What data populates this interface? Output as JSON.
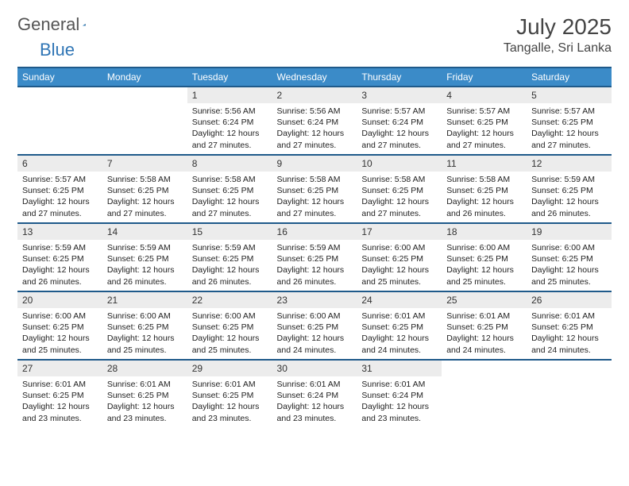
{
  "brand": {
    "part1": "General",
    "part2": "Blue"
  },
  "title": "July 2025",
  "location": "Tangalle, Sri Lanka",
  "colors": {
    "header_bg": "#3b8bc8",
    "header_border": "#1f5a8a",
    "daynum_bg": "#ececec",
    "brand_gray": "#545454",
    "brand_blue": "#2f75b5"
  },
  "weekdays": [
    "Sunday",
    "Monday",
    "Tuesday",
    "Wednesday",
    "Thursday",
    "Friday",
    "Saturday"
  ],
  "weeks": [
    [
      null,
      null,
      {
        "n": "1",
        "sr": "5:56 AM",
        "ss": "6:24 PM",
        "dl": "12 hours and 27 minutes."
      },
      {
        "n": "2",
        "sr": "5:56 AM",
        "ss": "6:24 PM",
        "dl": "12 hours and 27 minutes."
      },
      {
        "n": "3",
        "sr": "5:57 AM",
        "ss": "6:24 PM",
        "dl": "12 hours and 27 minutes."
      },
      {
        "n": "4",
        "sr": "5:57 AM",
        "ss": "6:25 PM",
        "dl": "12 hours and 27 minutes."
      },
      {
        "n": "5",
        "sr": "5:57 AM",
        "ss": "6:25 PM",
        "dl": "12 hours and 27 minutes."
      }
    ],
    [
      {
        "n": "6",
        "sr": "5:57 AM",
        "ss": "6:25 PM",
        "dl": "12 hours and 27 minutes."
      },
      {
        "n": "7",
        "sr": "5:58 AM",
        "ss": "6:25 PM",
        "dl": "12 hours and 27 minutes."
      },
      {
        "n": "8",
        "sr": "5:58 AM",
        "ss": "6:25 PM",
        "dl": "12 hours and 27 minutes."
      },
      {
        "n": "9",
        "sr": "5:58 AM",
        "ss": "6:25 PM",
        "dl": "12 hours and 27 minutes."
      },
      {
        "n": "10",
        "sr": "5:58 AM",
        "ss": "6:25 PM",
        "dl": "12 hours and 27 minutes."
      },
      {
        "n": "11",
        "sr": "5:58 AM",
        "ss": "6:25 PM",
        "dl": "12 hours and 26 minutes."
      },
      {
        "n": "12",
        "sr": "5:59 AM",
        "ss": "6:25 PM",
        "dl": "12 hours and 26 minutes."
      }
    ],
    [
      {
        "n": "13",
        "sr": "5:59 AM",
        "ss": "6:25 PM",
        "dl": "12 hours and 26 minutes."
      },
      {
        "n": "14",
        "sr": "5:59 AM",
        "ss": "6:25 PM",
        "dl": "12 hours and 26 minutes."
      },
      {
        "n": "15",
        "sr": "5:59 AM",
        "ss": "6:25 PM",
        "dl": "12 hours and 26 minutes."
      },
      {
        "n": "16",
        "sr": "5:59 AM",
        "ss": "6:25 PM",
        "dl": "12 hours and 26 minutes."
      },
      {
        "n": "17",
        "sr": "6:00 AM",
        "ss": "6:25 PM",
        "dl": "12 hours and 25 minutes."
      },
      {
        "n": "18",
        "sr": "6:00 AM",
        "ss": "6:25 PM",
        "dl": "12 hours and 25 minutes."
      },
      {
        "n": "19",
        "sr": "6:00 AM",
        "ss": "6:25 PM",
        "dl": "12 hours and 25 minutes."
      }
    ],
    [
      {
        "n": "20",
        "sr": "6:00 AM",
        "ss": "6:25 PM",
        "dl": "12 hours and 25 minutes."
      },
      {
        "n": "21",
        "sr": "6:00 AM",
        "ss": "6:25 PM",
        "dl": "12 hours and 25 minutes."
      },
      {
        "n": "22",
        "sr": "6:00 AM",
        "ss": "6:25 PM",
        "dl": "12 hours and 25 minutes."
      },
      {
        "n": "23",
        "sr": "6:00 AM",
        "ss": "6:25 PM",
        "dl": "12 hours and 24 minutes."
      },
      {
        "n": "24",
        "sr": "6:01 AM",
        "ss": "6:25 PM",
        "dl": "12 hours and 24 minutes."
      },
      {
        "n": "25",
        "sr": "6:01 AM",
        "ss": "6:25 PM",
        "dl": "12 hours and 24 minutes."
      },
      {
        "n": "26",
        "sr": "6:01 AM",
        "ss": "6:25 PM",
        "dl": "12 hours and 24 minutes."
      }
    ],
    [
      {
        "n": "27",
        "sr": "6:01 AM",
        "ss": "6:25 PM",
        "dl": "12 hours and 23 minutes."
      },
      {
        "n": "28",
        "sr": "6:01 AM",
        "ss": "6:25 PM",
        "dl": "12 hours and 23 minutes."
      },
      {
        "n": "29",
        "sr": "6:01 AM",
        "ss": "6:25 PM",
        "dl": "12 hours and 23 minutes."
      },
      {
        "n": "30",
        "sr": "6:01 AM",
        "ss": "6:24 PM",
        "dl": "12 hours and 23 minutes."
      },
      {
        "n": "31",
        "sr": "6:01 AM",
        "ss": "6:24 PM",
        "dl": "12 hours and 23 minutes."
      },
      null,
      null
    ]
  ],
  "labels": {
    "sunrise": "Sunrise:",
    "sunset": "Sunset:",
    "daylight": "Daylight:"
  }
}
